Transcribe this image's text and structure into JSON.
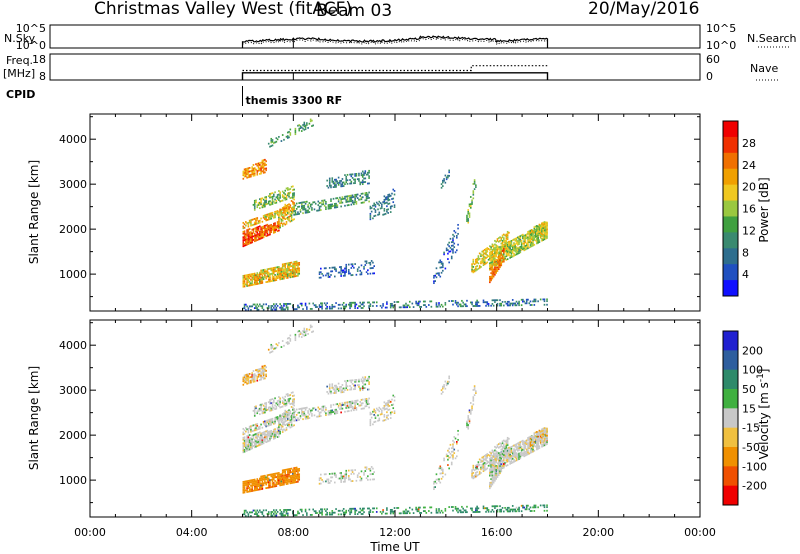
{
  "header": {
    "title": "Christmas Valley West (fitACF)",
    "beam": "Beam 03",
    "date": "20/May/2016"
  },
  "time_axis": {
    "label": "Time UT",
    "range_hours": [
      0,
      24
    ],
    "tick_labels": [
      "00:00",
      "04:00",
      "08:00",
      "12:00",
      "16:00",
      "20:00",
      "00:00"
    ]
  },
  "strips": {
    "nsky": {
      "left_label": "N.Sky",
      "left_ticks": [
        "10^5",
        "10^0"
      ],
      "right_ticks": [
        "10^5",
        "10^0"
      ],
      "right_label": "N.Search",
      "legend_style": "dotted"
    },
    "freq": {
      "left_label": "Freq.",
      "left_unit": "[MHz]",
      "left_ticks": [
        "18",
        "8"
      ],
      "right_ticks": [
        "60",
        "0"
      ],
      "right_label": "Nave",
      "legend_style": "dotted",
      "freq_steps": [
        [
          6.0,
          10.0
        ],
        [
          8.0,
          10.0
        ],
        [
          18.0,
          10.0
        ]
      ],
      "nave_steps": [
        [
          6.0,
          22
        ],
        [
          15.0,
          22
        ],
        [
          15.0,
          33
        ],
        [
          18.0,
          33
        ]
      ]
    },
    "cpid": {
      "label": "CPID",
      "program": "themis 3300 RF",
      "start_hour": 6.0
    }
  },
  "panels": {
    "power": {
      "ylabel": "Slant Range [km]",
      "y_ticks": [
        1000,
        2000,
        3000,
        4000
      ],
      "colorbar_label": "Power [dB]",
      "colorbar_ticks": [
        "4",
        "8",
        "12",
        "16",
        "20",
        "24",
        "28"
      ],
      "colors": [
        "#1010ff",
        "#2050c0",
        "#2e6e8e",
        "#3a8a70",
        "#40a040",
        "#9ac840",
        "#f0c820",
        "#f0a000",
        "#f07000",
        "#f03000",
        "#f00000"
      ]
    },
    "velocity": {
      "ylabel": "Slant Range [km]",
      "y_ticks": [
        1000,
        2000,
        3000,
        4000
      ],
      "colorbar_label": "Velocity [m s^-1]",
      "colorbar_ticks": [
        "200",
        "100",
        "50",
        "15",
        "-15",
        "-50",
        "-100",
        "-200"
      ],
      "colors": [
        "#2020d0",
        "#2e5e9e",
        "#2e8a6a",
        "#40b040",
        "#c8c8c8",
        "#f0c040",
        "#f09000",
        "#f05000",
        "#f00000"
      ]
    }
  },
  "chart_data": {
    "type": "heatmap",
    "x_unit": "hours UT",
    "y_unit": "km",
    "xlim": [
      0,
      24
    ],
    "ylim": [
      180,
      4560
    ],
    "operating_window_hours": [
      6.0,
      18.0
    ],
    "scatter_regions": [
      {
        "t": [
          6.0,
          7.4
        ],
        "r0": [
          1600,
          1950
        ],
        "r1": [
          1950,
          2150
        ],
        "power": [
          20,
          30
        ],
        "velocity": [
          -20,
          20
        ],
        "density": 0.85
      },
      {
        "t": [
          7.4,
          8.0
        ],
        "r0": [
          2000,
          2400
        ],
        "r1": [
          2200,
          2700
        ],
        "power": [
          14,
          24
        ],
        "velocity": [
          -20,
          20
        ],
        "density": 0.7
      },
      {
        "t": [
          6.0,
          7.8
        ],
        "r0": [
          2000,
          2150
        ],
        "r1": [
          2350,
          2500
        ],
        "power": [
          14,
          24
        ],
        "velocity": [
          -20,
          20
        ],
        "density": 0.7
      },
      {
        "t": [
          6.0,
          6.9
        ],
        "r0": [
          3100,
          3300
        ],
        "r1": [
          3250,
          3550
        ],
        "power": [
          18,
          26
        ],
        "velocity": [
          -40,
          10
        ],
        "density": 0.7
      },
      {
        "t": [
          6.4,
          8.0
        ],
        "r0": [
          2400,
          2600
        ],
        "r1": [
          2700,
          3000
        ],
        "power": [
          10,
          20
        ],
        "velocity": [
          -20,
          20
        ],
        "density": 0.5
      },
      {
        "t": [
          6.0,
          8.2
        ],
        "r0": [
          700,
          950
        ],
        "r1": [
          950,
          1300
        ],
        "power": [
          14,
          24
        ],
        "velocity": [
          -80,
          -40
        ],
        "density": 0.85
      },
      {
        "t": [
          8.0,
          11.0
        ],
        "r0": [
          2300,
          2550
        ],
        "r1": [
          2600,
          2800
        ],
        "power": [
          8,
          16
        ],
        "velocity": [
          -20,
          20
        ],
        "density": 0.45
      },
      {
        "t": [
          11.0,
          12.0
        ],
        "r0": [
          2200,
          2500
        ],
        "r1": [
          2400,
          2900
        ],
        "power": [
          6,
          12
        ],
        "velocity": [
          -20,
          20
        ],
        "density": 0.35
      },
      {
        "t": [
          9.3,
          11.0
        ],
        "r0": [
          2900,
          3100
        ],
        "r1": [
          3000,
          3300
        ],
        "power": [
          6,
          14
        ],
        "velocity": [
          -20,
          20
        ],
        "density": 0.4
      },
      {
        "t": [
          7.0,
          8.8
        ],
        "r0": [
          3800,
          4000
        ],
        "r1": [
          4300,
          4500
        ],
        "power": [
          8,
          16
        ],
        "velocity": [
          -20,
          20
        ],
        "density": 0.35
      },
      {
        "t": [
          9.0,
          11.2
        ],
        "r0": [
          900,
          1100
        ],
        "r1": [
          1000,
          1300
        ],
        "power": [
          4,
          10
        ],
        "velocity": [
          -20,
          20
        ],
        "density": 0.3
      },
      {
        "t": [
          13.5,
          14.5
        ],
        "r0": [
          700,
          1000
        ],
        "r1": [
          1600,
          2200
        ],
        "power": [
          4,
          10
        ],
        "velocity": [
          -20,
          20
        ],
        "density": 0.3
      },
      {
        "t": [
          15.7,
          18.0
        ],
        "r0": [
          1100,
          1500
        ],
        "r1": [
          1800,
          2200
        ],
        "power": [
          12,
          20
        ],
        "velocity": [
          -20,
          20
        ],
        "density": 0.75
      },
      {
        "t": [
          15.0,
          16.5
        ],
        "r0": [
          1000,
          1300
        ],
        "r1": [
          1600,
          2000
        ],
        "power": [
          14,
          22
        ],
        "velocity": [
          -20,
          20
        ],
        "density": 0.6
      },
      {
        "t": [
          15.7,
          16.3
        ],
        "r0": [
          800,
          1100
        ],
        "r1": [
          1300,
          1600
        ],
        "power": [
          20,
          26
        ],
        "velocity": [
          -20,
          20
        ],
        "density": 0.7
      },
      {
        "t": [
          14.8,
          15.2
        ],
        "r0": [
          2000,
          2300
        ],
        "r1": [
          3000,
          3400
        ],
        "power": [
          10,
          18
        ],
        "velocity": [
          -20,
          20
        ],
        "density": 0.4
      },
      {
        "t": [
          13.8,
          14.2
        ],
        "r0": [
          2900,
          3100
        ],
        "r1": [
          3200,
          3400
        ],
        "power": [
          6,
          12
        ],
        "velocity": [
          -20,
          20
        ],
        "density": 0.35
      },
      {
        "t": [
          17.3,
          18.0
        ],
        "r0": [
          1700,
          2000
        ],
        "r1": [
          1900,
          2200
        ],
        "power": [
          14,
          22
        ],
        "velocity": [
          -40,
          10
        ],
        "density": 0.6
      },
      {
        "t": [
          6.0,
          18.0
        ],
        "r0": [
          180,
          300
        ],
        "r1": [
          300,
          450
        ],
        "power": [
          4,
          14
        ],
        "velocity": [
          20,
          60
        ],
        "density": 0.35
      }
    ]
  }
}
